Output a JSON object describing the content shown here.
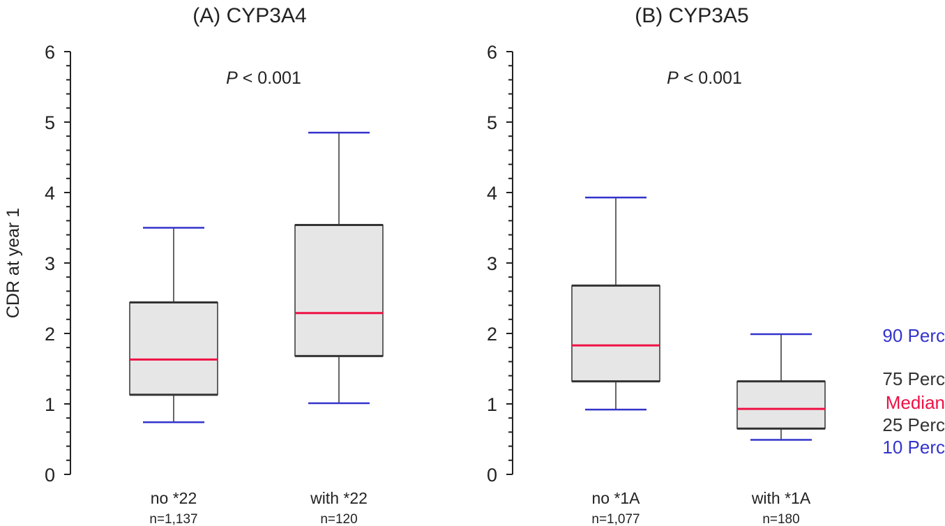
{
  "chart_data": [
    {
      "type": "box",
      "title": "(A) CYP3A4",
      "ylabel": "CDR at year 1",
      "ylim": [
        0,
        6
      ],
      "yticks": [
        "0",
        "1",
        "2",
        "3",
        "4",
        "5",
        "6"
      ],
      "annotation": {
        "italic": "P",
        "rest": " < 0.001"
      },
      "categories": [
        {
          "label": "no *22",
          "n": "n=1,137",
          "p10": 0.74,
          "p25": 1.13,
          "median": 1.63,
          "p75": 2.44,
          "p90": 3.5
        },
        {
          "label": "with *22",
          "n": "n=120",
          "p10": 1.01,
          "p25": 1.68,
          "median": 2.29,
          "p75": 3.54,
          "p90": 4.85
        }
      ]
    },
    {
      "type": "box",
      "title": "(B) CYP3A5",
      "ylabel": "",
      "ylim": [
        0,
        6
      ],
      "yticks": [
        "0",
        "1",
        "2",
        "3",
        "4",
        "5",
        "6"
      ],
      "annotation": {
        "italic": "P",
        "rest": " < 0.001"
      },
      "categories": [
        {
          "label": "no *1A",
          "n": "n=1,077",
          "p10": 0.92,
          "p25": 1.32,
          "median": 1.83,
          "p75": 2.68,
          "p90": 3.93
        },
        {
          "label": "with *1A",
          "n": "n=180",
          "p10": 0.49,
          "p25": 0.65,
          "median": 0.93,
          "p75": 1.32,
          "p90": 1.99
        }
      ]
    }
  ],
  "legend": [
    {
      "label": "90 Perc",
      "color": "#3333cc"
    },
    {
      "label": "75 Perc",
      "color": "#333333"
    },
    {
      "label": "Median",
      "color": "#ee1144"
    },
    {
      "label": "25 Perc",
      "color": "#333333"
    },
    {
      "label": "10 Perc",
      "color": "#3333cc"
    }
  ],
  "colors": {
    "box": "#e6e6e6",
    "whisker_cap": "#3333cc",
    "median": "#ee1144",
    "line": "#333333"
  }
}
